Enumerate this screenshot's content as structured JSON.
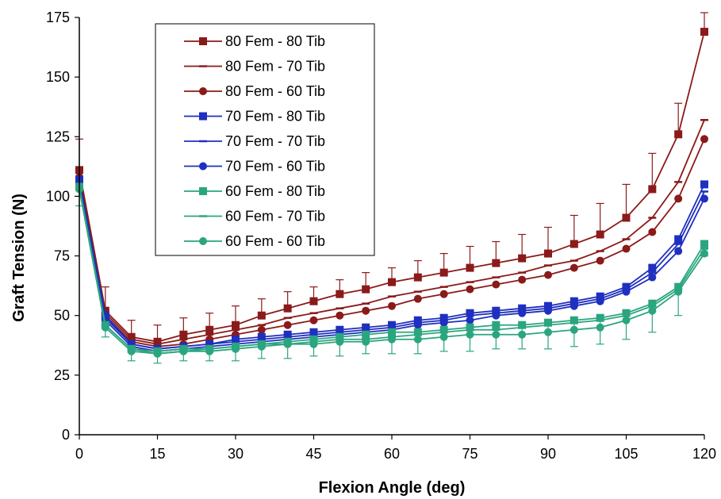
{
  "chart_data": {
    "type": "line",
    "xlabel": "Flexion Angle (deg)",
    "ylabel": "Graft Tension (N)",
    "xlim": [
      0,
      120
    ],
    "ylim": [
      0,
      175
    ],
    "xticks": [
      0,
      15,
      30,
      45,
      60,
      75,
      90,
      105,
      120
    ],
    "yticks": [
      0,
      25,
      50,
      75,
      100,
      125,
      150,
      175
    ],
    "grid": false,
    "legend_position": "top-left",
    "x": [
      0,
      5,
      10,
      15,
      20,
      25,
      30,
      35,
      40,
      45,
      50,
      55,
      60,
      65,
      70,
      75,
      80,
      85,
      90,
      95,
      100,
      105,
      110,
      115,
      120
    ],
    "series": [
      {
        "name": "80 Fem - 80 Tib",
        "color": "#8b1a1a",
        "marker": "square",
        "values": [
          111,
          52,
          41,
          39,
          42,
          44,
          46,
          50,
          53,
          56,
          59,
          61,
          64,
          66,
          68,
          70,
          72,
          74,
          76,
          80,
          84,
          91,
          103,
          126,
          169
        ],
        "error": [
          13,
          10,
          7,
          7,
          7,
          7,
          8,
          7,
          7,
          6,
          6,
          7,
          6,
          7,
          8,
          9,
          9,
          10,
          11,
          12,
          13,
          14,
          15,
          13,
          8
        ]
      },
      {
        "name": "80 Fem - 70 Tib",
        "color": "#8b1a1a",
        "marker": "dash",
        "values": [
          110,
          51,
          40,
          38,
          40,
          42,
          44,
          46,
          49,
          51,
          53,
          55,
          58,
          60,
          62,
          64,
          66,
          68,
          71,
          73,
          77,
          82,
          91,
          106,
          132
        ],
        "error": []
      },
      {
        "name": "80 Fem - 60 Tib",
        "color": "#8b1a1a",
        "marker": "circle",
        "values": [
          108,
          50,
          39,
          37,
          38,
          40,
          42,
          44,
          46,
          48,
          50,
          52,
          54,
          57,
          59,
          61,
          63,
          65,
          67,
          70,
          73,
          78,
          85,
          99,
          124
        ],
        "error": []
      },
      {
        "name": "70 Fem - 80 Tib",
        "color": "#1f2fbf",
        "marker": "square",
        "values": [
          107,
          50,
          38,
          36,
          37,
          38,
          40,
          41,
          42,
          43,
          44,
          45,
          46,
          48,
          49,
          51,
          52,
          53,
          54,
          56,
          58,
          62,
          70,
          82,
          105
        ],
        "error": []
      },
      {
        "name": "70 Fem - 70 Tib",
        "color": "#1f2fbf",
        "marker": "dash",
        "values": [
          106,
          49,
          38,
          36,
          37,
          38,
          39,
          40,
          41,
          42,
          43,
          44,
          45,
          47,
          48,
          50,
          51,
          52,
          53,
          55,
          57,
          61,
          68,
          80,
          102
        ],
        "error": []
      },
      {
        "name": "70 Fem - 60 Tib",
        "color": "#1f2fbf",
        "marker": "circle",
        "values": [
          105,
          48,
          37,
          35,
          36,
          37,
          38,
          39,
          40,
          41,
          42,
          43,
          44,
          46,
          47,
          48,
          50,
          51,
          52,
          54,
          56,
          60,
          66,
          77,
          99
        ],
        "error": []
      },
      {
        "name": "60 Fem - 80 Tib",
        "color": "#2aa57f",
        "marker": "square",
        "values": [
          104,
          46,
          36,
          35,
          36,
          36,
          37,
          38,
          39,
          40,
          41,
          42,
          43,
          43,
          44,
          45,
          46,
          46,
          47,
          48,
          49,
          51,
          55,
          62,
          80
        ],
        "error": [
          8,
          5,
          5,
          5,
          5,
          5,
          6,
          6,
          7,
          7,
          8,
          8,
          9,
          9,
          9,
          10,
          10,
          10,
          11,
          11,
          11,
          11,
          12,
          12,
          5
        ]
      },
      {
        "name": "60 Fem - 70 Tib",
        "color": "#2aa57f",
        "marker": "dash",
        "values": [
          104,
          46,
          36,
          34,
          35,
          36,
          37,
          38,
          38,
          39,
          40,
          40,
          41,
          42,
          43,
          44,
          44,
          45,
          46,
          47,
          48,
          50,
          54,
          61,
          78
        ],
        "error": []
      },
      {
        "name": "60 Fem - 60 Tib",
        "color": "#2aa57f",
        "marker": "circle",
        "values": [
          103,
          45,
          35,
          34,
          35,
          35,
          36,
          37,
          38,
          38,
          39,
          39,
          40,
          40,
          41,
          42,
          42,
          42,
          43,
          44,
          45,
          48,
          52,
          60,
          76
        ],
        "error": []
      }
    ]
  }
}
